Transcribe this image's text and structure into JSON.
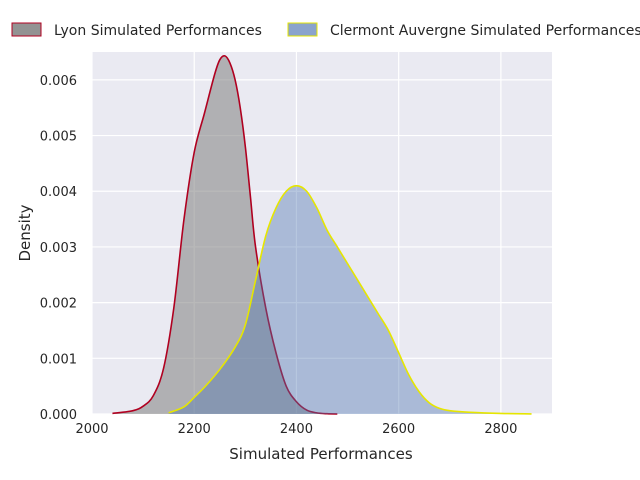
{
  "chart_data": {
    "type": "area",
    "title": "",
    "xlabel": "Simulated Performances",
    "ylabel": "Density",
    "xlim": [
      2000,
      2900
    ],
    "ylim": [
      0,
      0.0065
    ],
    "grid": true,
    "legend_placement": "top",
    "x_ticks": [
      2000,
      2200,
      2400,
      2600,
      2800
    ],
    "x_tick_labels": [
      "2000",
      "2200",
      "2400",
      "2600",
      "2800"
    ],
    "y_ticks": [
      0,
      0.001,
      0.002,
      0.003,
      0.004,
      0.005,
      0.006
    ],
    "y_tick_labels": [
      "0.000",
      "0.001",
      "0.002",
      "0.003",
      "0.004",
      "0.005",
      "0.006"
    ],
    "series": [
      {
        "name": "Lyon Simulated Performances",
        "fill": "#808080",
        "line": "#b00020",
        "x": [
          2040,
          2080,
          2100,
          2120,
          2140,
          2160,
          2180,
          2200,
          2220,
          2240,
          2250,
          2260,
          2270,
          2280,
          2290,
          2300,
          2310,
          2320,
          2340,
          2360,
          2380,
          2400,
          2420,
          2440,
          2460,
          2480
        ],
        "y": [
          1e-05,
          6e-05,
          0.00014,
          0.00033,
          0.00082,
          0.0019,
          0.0035,
          0.0047,
          0.0054,
          0.0061,
          0.00636,
          0.00643,
          0.0063,
          0.006,
          0.0055,
          0.0048,
          0.0039,
          0.003,
          0.0019,
          0.0011,
          0.0005,
          0.00022,
          7e-05,
          2e-05,
          5e-06,
          1e-06
        ]
      },
      {
        "name": "Clermont Auvergne Simulated Performances",
        "fill": "#4c72b0",
        "line": "#e6e600",
        "x": [
          2150,
          2180,
          2200,
          2220,
          2250,
          2280,
          2300,
          2320,
          2340,
          2360,
          2380,
          2400,
          2420,
          2440,
          2460,
          2480,
          2500,
          2520,
          2540,
          2560,
          2580,
          2600,
          2620,
          2640,
          2660,
          2680,
          2700,
          2740,
          2800,
          2860
        ],
        "y": [
          2e-05,
          0.00013,
          0.0003,
          0.00048,
          0.0008,
          0.0012,
          0.0016,
          0.0024,
          0.0032,
          0.0037,
          0.004,
          0.0041,
          0.004,
          0.0037,
          0.0033,
          0.003,
          0.0027,
          0.0024,
          0.0021,
          0.0018,
          0.0015,
          0.0011,
          0.0007,
          0.0004,
          0.0002,
          0.0001,
          6e-05,
          3e-05,
          1e-05,
          2e-06
        ]
      }
    ]
  }
}
